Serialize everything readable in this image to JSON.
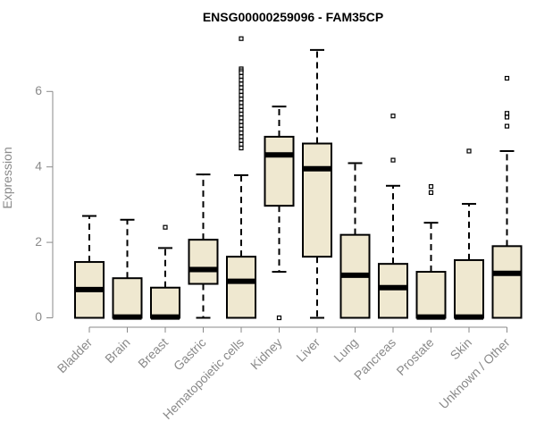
{
  "chart_data": {
    "type": "boxplot",
    "title": "ENSG00000259096 - FAM35CP",
    "ylabel": "Expression",
    "ylim": [
      0,
      7.5
    ],
    "yticks": [
      0,
      2,
      4,
      6
    ],
    "grid": false,
    "box_fill": "#efe8d0",
    "box_stroke": "#000000",
    "categories": [
      "Bladder",
      "Brain",
      "Breast",
      "Gastric",
      "Hematopoietic cells",
      "Kidney",
      "Liver",
      "Lung",
      "Pancreas",
      "Prostate",
      "Skin",
      "Unknown / Other"
    ],
    "boxes": [
      {
        "category": "Bladder",
        "whisker_low": 0,
        "q1": 0,
        "median": 0.75,
        "q3": 1.48,
        "whisker_high": 2.7,
        "outliers": []
      },
      {
        "category": "Brain",
        "whisker_low": 0,
        "q1": 0,
        "median": 0.02,
        "q3": 1.05,
        "whisker_high": 2.6,
        "outliers": []
      },
      {
        "category": "Breast",
        "whisker_low": 0,
        "q1": 0,
        "median": 0.02,
        "q3": 0.8,
        "whisker_high": 1.85,
        "outliers": [
          2.4
        ]
      },
      {
        "category": "Gastric",
        "whisker_low": 0,
        "q1": 0.9,
        "median": 1.28,
        "q3": 2.07,
        "whisker_high": 3.8,
        "outliers": []
      },
      {
        "category": "Hematopoietic cells",
        "whisker_low": 0,
        "q1": 0,
        "median": 0.97,
        "q3": 1.62,
        "whisker_high": 3.78,
        "outliers": [
          7.4,
          6.6,
          6.55,
          6.5,
          6.4,
          6.3,
          6.2,
          6.1,
          6.0,
          5.9,
          5.8,
          5.7,
          5.6,
          5.5,
          5.4,
          5.3,
          5.2,
          5.1,
          5.0,
          4.9,
          4.8,
          4.7,
          4.6,
          4.5
        ]
      },
      {
        "category": "Kidney",
        "whisker_low": 1.22,
        "q1": 2.97,
        "median": 4.32,
        "q3": 4.8,
        "whisker_high": 5.6,
        "outliers": [
          0
        ]
      },
      {
        "category": "Liver",
        "whisker_low": 0,
        "q1": 1.62,
        "median": 3.95,
        "q3": 4.62,
        "whisker_high": 7.1,
        "outliers": []
      },
      {
        "category": "Lung",
        "whisker_low": 0,
        "q1": 0,
        "median": 1.13,
        "q3": 2.2,
        "whisker_high": 4.1,
        "outliers": []
      },
      {
        "category": "Pancreas",
        "whisker_low": 0,
        "q1": 0,
        "median": 0.8,
        "q3": 1.43,
        "whisker_high": 3.5,
        "outliers": [
          5.35,
          4.18
        ]
      },
      {
        "category": "Prostate",
        "whisker_low": 0,
        "q1": 0,
        "median": 0.02,
        "q3": 1.22,
        "whisker_high": 2.52,
        "outliers": [
          3.48,
          3.32
        ]
      },
      {
        "category": "Skin",
        "whisker_low": 0,
        "q1": 0,
        "median": 0.02,
        "q3": 1.53,
        "whisker_high": 3.02,
        "outliers": [
          4.42
        ]
      },
      {
        "category": "Unknown / Other",
        "whisker_low": 0,
        "q1": 0,
        "median": 1.18,
        "q3": 1.9,
        "whisker_high": 4.42,
        "outliers": [
          6.35,
          5.42,
          5.32,
          5.08
        ]
      }
    ]
  }
}
